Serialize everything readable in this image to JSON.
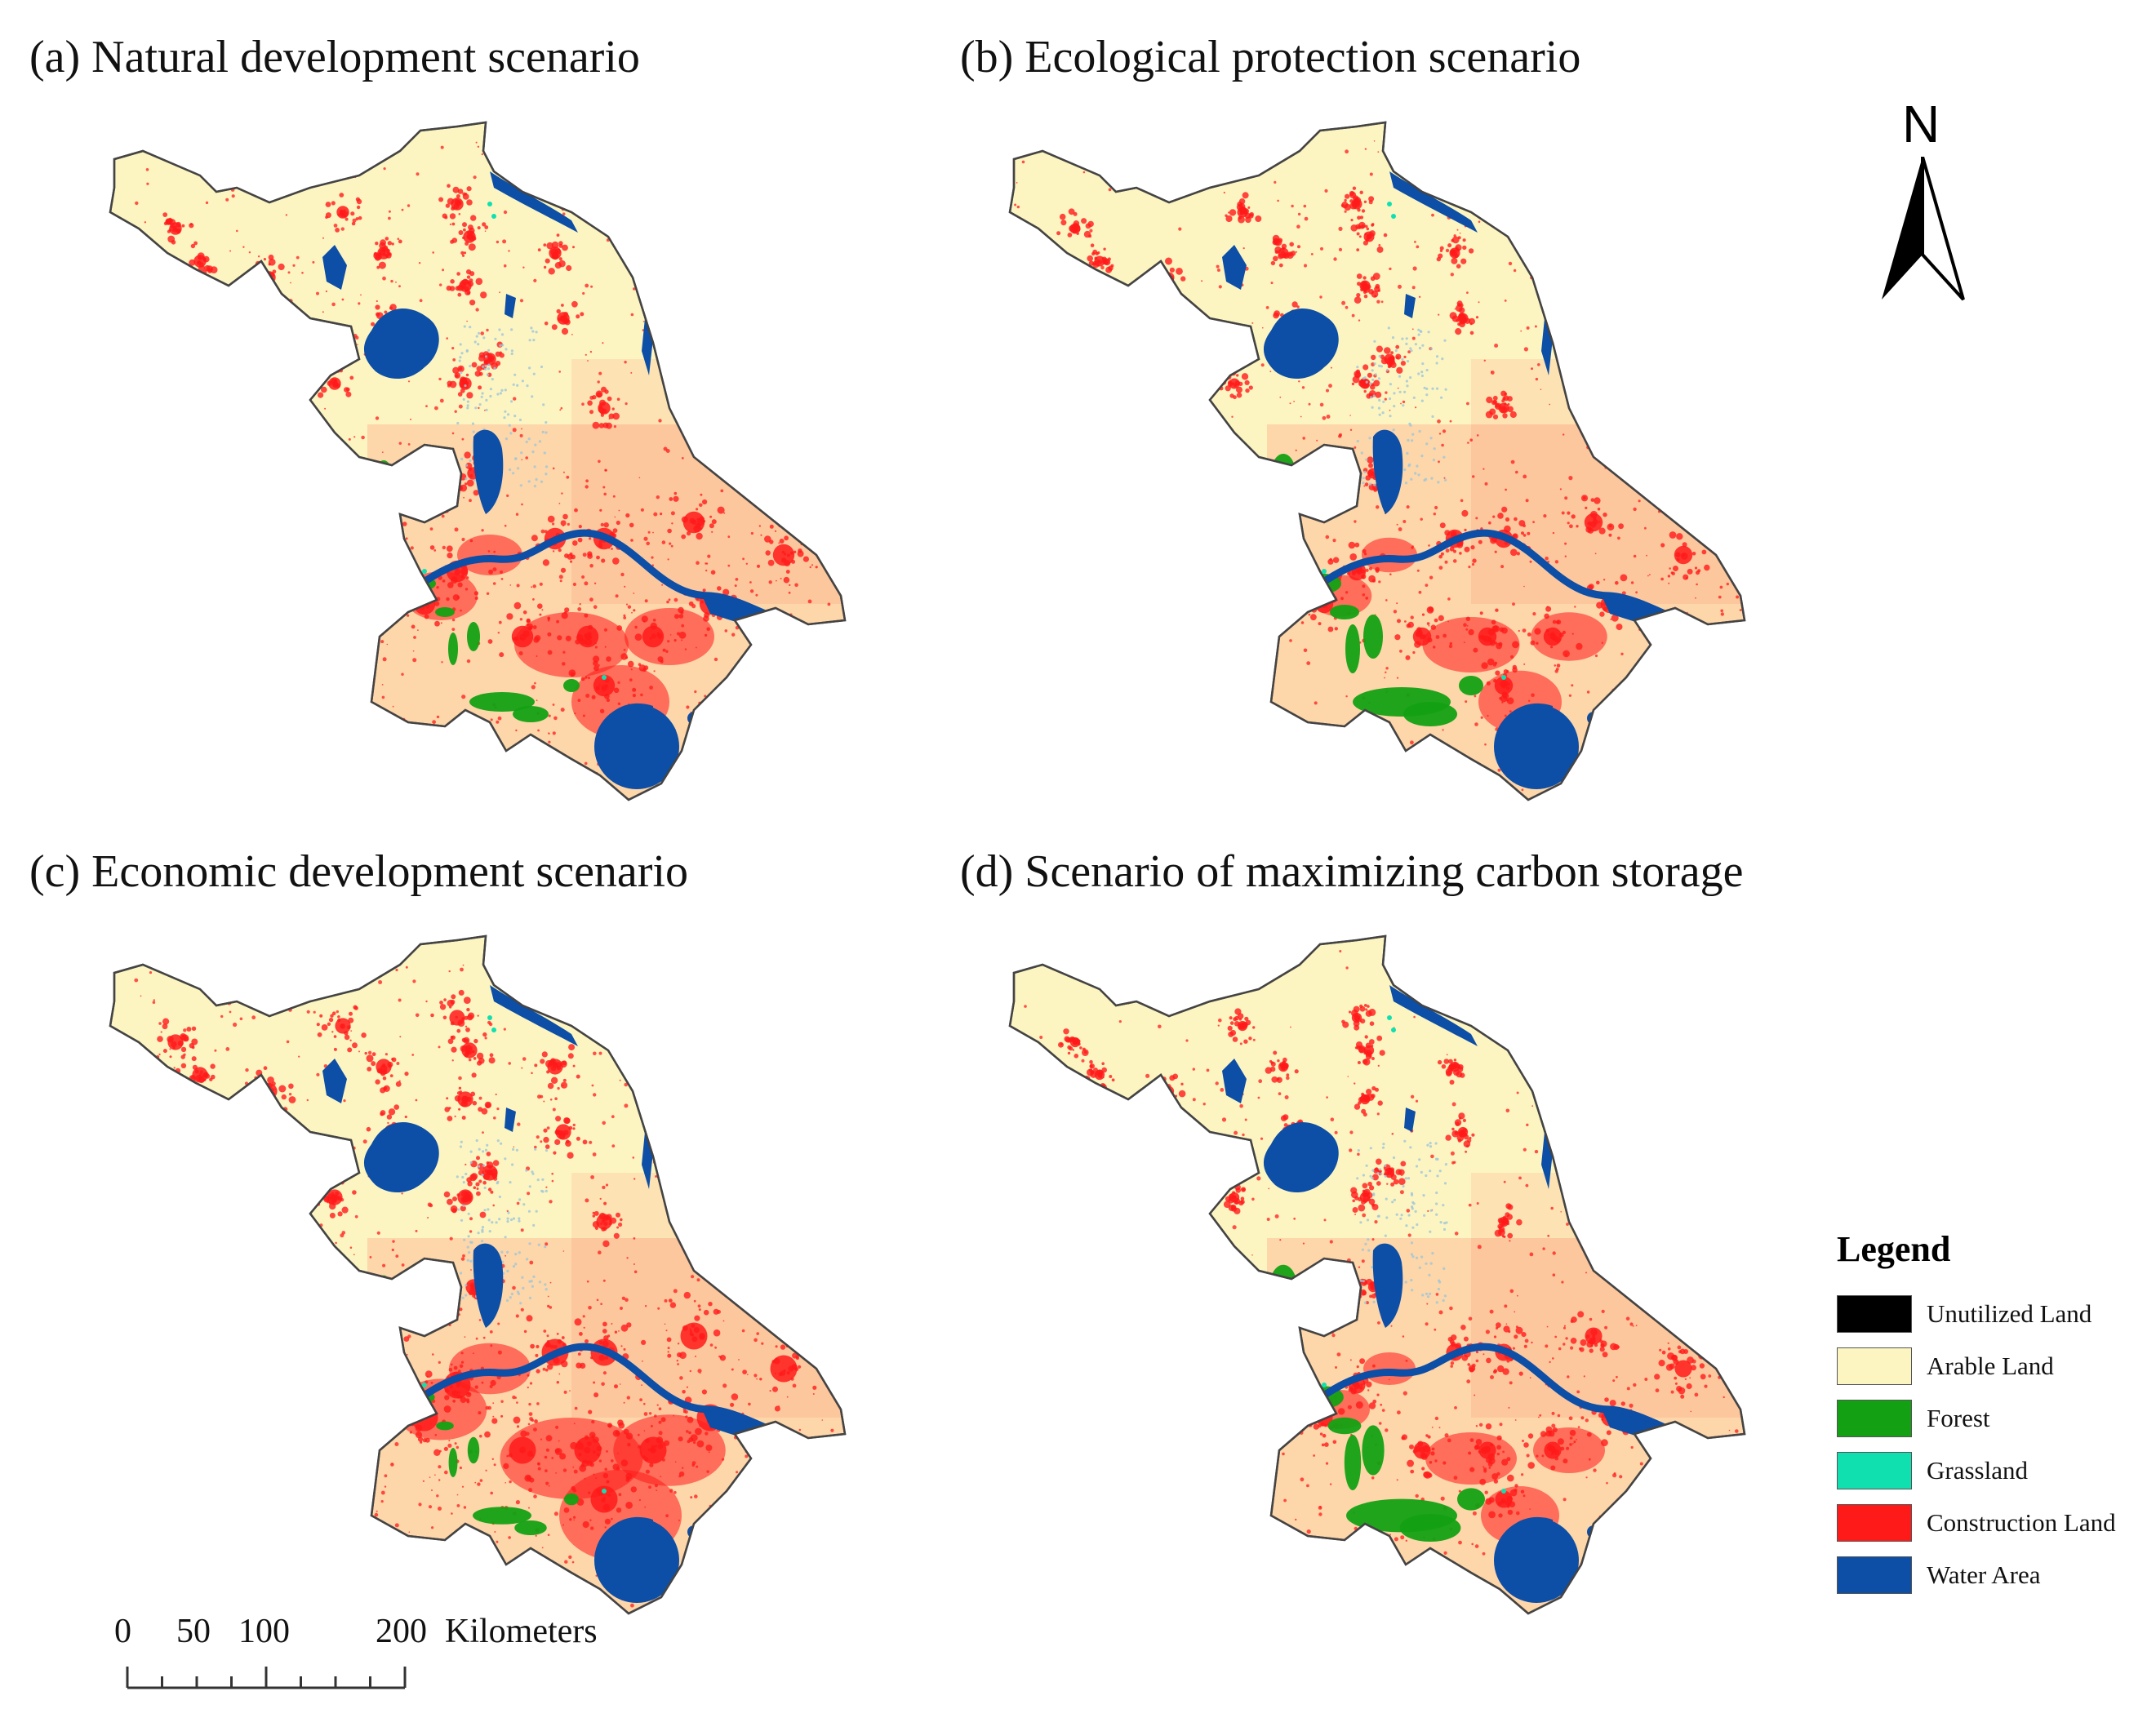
{
  "panels": [
    {
      "title": "(a) Natural development scenario",
      "scenario": "natural-development"
    },
    {
      "title": "(b) Ecological protection scenario",
      "scenario": "ecological-protection"
    },
    {
      "title": "(c) Economic development scenario",
      "scenario": "economic-development"
    },
    {
      "title": "(d) Scenario of maximizing carbon storage",
      "scenario": "maximizing-carbon-storage"
    }
  ],
  "north_arrow": {
    "label": "N"
  },
  "legend": {
    "title": "Legend",
    "items": [
      {
        "label": "Unutilized Land",
        "color": "#000000"
      },
      {
        "label": "Arable Land",
        "color": "#fdf5c1"
      },
      {
        "label": "Forest",
        "color": "#13a113"
      },
      {
        "label": "Grassland",
        "color": "#10e0b0"
      },
      {
        "label": "Construction Land",
        "color": "#ff1a1a"
      },
      {
        "label": "Water Area",
        "color": "#0d4ea6"
      }
    ]
  },
  "scale_bar": {
    "labels": [
      "0",
      "50",
      "100",
      "200"
    ],
    "unit": "Kilometers"
  }
}
